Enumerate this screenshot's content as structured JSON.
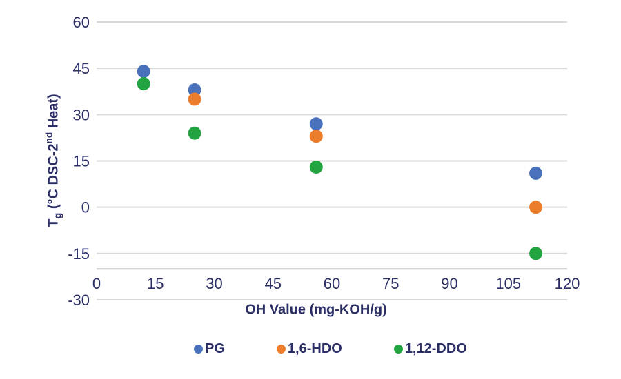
{
  "chart_data": {
    "type": "scatter",
    "title": "",
    "xlabel": "OH Value (mg-KOH/g)",
    "ylabel": "Tg (°C DSC-2nd Heat)",
    "ylabel_rich": {
      "prefix": "T",
      "subscript": "g",
      "middle": " (°C DSC-2",
      "superscript": "nd",
      "suffix": " Heat)"
    },
    "xlim": [
      0,
      120
    ],
    "ylim": [
      -30,
      60
    ],
    "xticks": [
      0,
      15,
      30,
      45,
      60,
      75,
      90,
      105,
      120
    ],
    "yticks": [
      60,
      45,
      30,
      15,
      0,
      -15,
      -30
    ],
    "x_axis_line_position": -20,
    "grid": true,
    "legend_position": "bottom",
    "marker": "circle",
    "series": [
      {
        "name": "PG",
        "color": "#4A72BC",
        "points": [
          [
            12,
            44
          ],
          [
            25,
            38
          ],
          [
            56,
            27
          ],
          [
            112,
            11
          ]
        ]
      },
      {
        "name": "1,6-HDO",
        "color": "#EB7D2B",
        "points": [
          [
            25,
            35
          ],
          [
            56,
            23
          ],
          [
            112,
            0
          ]
        ]
      },
      {
        "name": "1,12-DDO",
        "color": "#22A440",
        "points": [
          [
            12,
            40
          ],
          [
            25,
            24
          ],
          [
            56,
            13
          ],
          [
            112,
            -15
          ]
        ]
      }
    ]
  },
  "colors": {
    "text": "#2C2F66",
    "gridline": "#D9D9D9",
    "axis_line": "#C6C6C6",
    "background": "#FFFFFF"
  }
}
